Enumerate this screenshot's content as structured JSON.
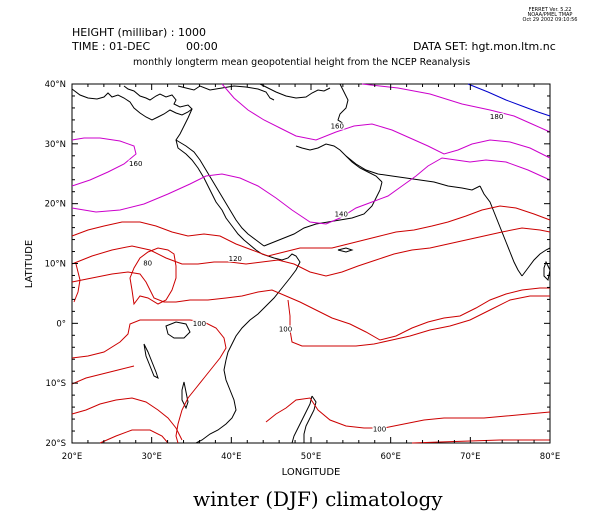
{
  "header": {
    "stamp_lines": [
      "FERRET Ver. 5.22",
      "NOAA/PMEL TMAP",
      "Oct 29 2002 09:10:56"
    ],
    "height_label": "HEIGHT (millibar) : 1000",
    "time_label": "TIME : 01-DEC",
    "time_value": "00:00",
    "dataset_label": "DATA SET: hgt.mon.ltm.nc",
    "plot_title": "monthly longterm mean geopotential height from the NCEP Reanalysis"
  },
  "axes": {
    "xlabel": "LONGITUDE",
    "ylabel": "LATITUDE",
    "x_ticks": [
      {
        "value": 20,
        "label": "20°E"
      },
      {
        "value": 30,
        "label": "30°E"
      },
      {
        "value": 40,
        "label": "40°E"
      },
      {
        "value": 50,
        "label": "50°E"
      },
      {
        "value": 60,
        "label": "60°E"
      },
      {
        "value": 70,
        "label": "70°E"
      },
      {
        "value": 80,
        "label": "80°E"
      }
    ],
    "y_ticks": [
      {
        "value": 40,
        "label": "40°N"
      },
      {
        "value": 30,
        "label": "30°N"
      },
      {
        "value": 20,
        "label": "20°N"
      },
      {
        "value": 10,
        "label": "10°N"
      },
      {
        "value": 0,
        "label": "0°"
      },
      {
        "value": -10,
        "label": "10°S"
      },
      {
        "value": -20,
        "label": "20°S"
      }
    ],
    "lon_range": [
      20,
      80
    ],
    "lat_range": [
      -20,
      40
    ]
  },
  "contour_labels": [
    {
      "text": "160",
      "lon": 28.0,
      "lat": 26.5,
      "color": "#cc00cc"
    },
    {
      "text": "160",
      "lon": 53.3,
      "lat": 32.7,
      "color": "#cc00cc"
    },
    {
      "text": "180",
      "lon": 73.3,
      "lat": 34.3,
      "color": "#0000cc"
    },
    {
      "text": "140",
      "lon": 53.8,
      "lat": 18.0,
      "color": "#cc0000"
    },
    {
      "text": "120",
      "lon": 40.5,
      "lat": 10.6,
      "color": "#cc0000"
    },
    {
      "text": "80",
      "lon": 29.5,
      "lat": 9.8,
      "color": "#cc0000"
    },
    {
      "text": "100",
      "lon": 36.0,
      "lat": -0.3,
      "color": "#cc0000"
    },
    {
      "text": "100",
      "lon": 46.8,
      "lat": -1.2,
      "color": "#cc0000"
    },
    {
      "text": "100",
      "lon": 58.6,
      "lat": -17.9,
      "color": "#cc0000"
    }
  ],
  "caption": "winter (DJF) climatology"
}
